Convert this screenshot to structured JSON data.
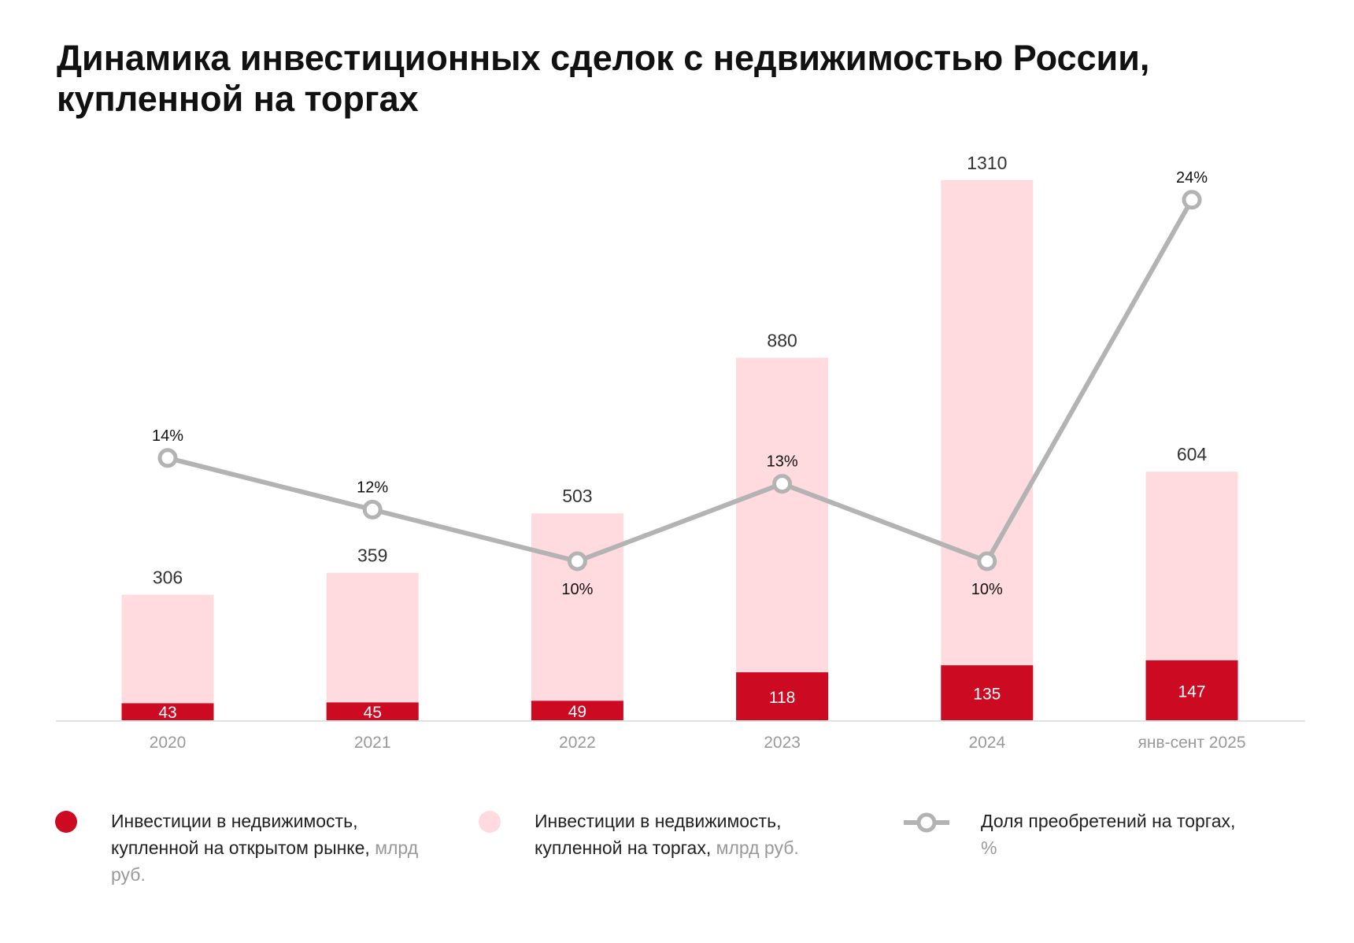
{
  "title": "Динамика инвестиционных сделок с недвижимостью России, купленной на торгах",
  "chart_data": {
    "type": "bar",
    "title": "Динамика инвестиционных сделок с недвижимостью России, купленной на торгах",
    "categories": [
      "2020",
      "2021",
      "2022",
      "2023",
      "2024",
      "янв-сент 2025"
    ],
    "series": [
      {
        "name": "Инвестиции в недвижимость, купленной на открытом рынке, млрд руб.",
        "type": "bar",
        "values": [
          43,
          45,
          49,
          118,
          135,
          147
        ],
        "color": "#cc0a22"
      },
      {
        "name": "Инвестиции в недвижимость, купленной на торгах, млрд руб.",
        "type": "bar",
        "values": [
          306,
          359,
          503,
          880,
          1310,
          604
        ],
        "color": "#ffdbe0"
      },
      {
        "name": "Доля преобретений на торгах, %",
        "type": "line",
        "values": [
          14,
          12,
          10,
          13,
          10,
          24
        ],
        "labels": [
          "14%",
          "12%",
          "10%",
          "13%",
          "10%",
          "24%"
        ],
        "color": "#b3b3b3"
      }
    ]
  },
  "legend": [
    {
      "text": "Инвестиции в недвижимость, купленной на открытом рынке,",
      "unit": "млрд руб."
    },
    {
      "text": "Инвестиции в недвижимость, купленной на торгах,",
      "unit": "млрд руб."
    },
    {
      "text": "Доля преобретений на торгах,",
      "unit": "%"
    }
  ]
}
